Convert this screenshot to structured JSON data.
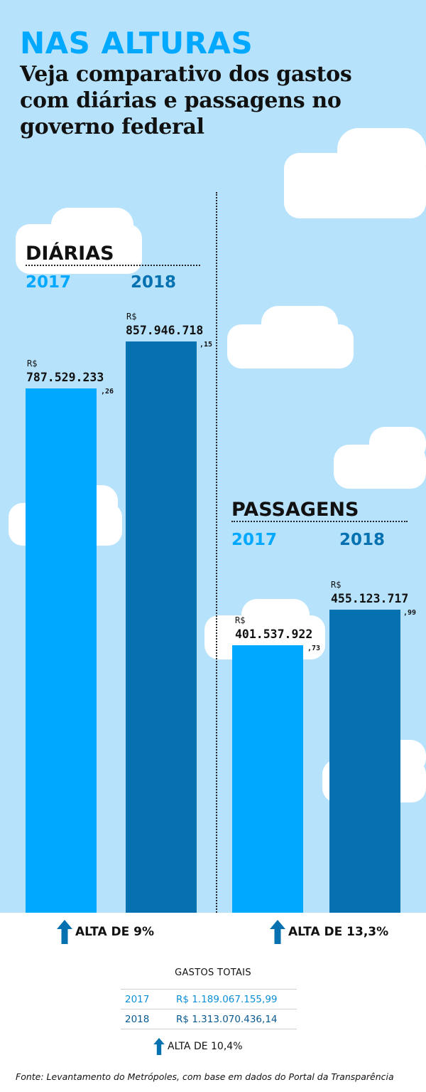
{
  "header": {
    "headline": "NAS ALTURAS",
    "subtitle": "Veja comparativo dos gastos com diárias e passagens no governo federal"
  },
  "colors": {
    "sky": "#b6e2fb",
    "bar_2017": "#00a8ff",
    "bar_2018": "#0571b0",
    "text": "#111111"
  },
  "icons": [
    "arrow-up-icon",
    "cloud"
  ],
  "chart_data": [
    {
      "type": "bar",
      "title": "DIÁRIAS",
      "categories": [
        "2017",
        "2018"
      ],
      "values": [
        787529233.26,
        857946718.15
      ],
      "currency": "R$",
      "labels": [
        {
          "main": "787.529.233",
          "cents": ",26"
        },
        {
          "main": "857.946.718",
          "cents": ",15"
        }
      ],
      "change": "ALTA DE 9%",
      "ylim": [
        0,
        900000000
      ]
    },
    {
      "type": "bar",
      "title": "PASSAGENS",
      "categories": [
        "2017",
        "2018"
      ],
      "values": [
        401537922.73,
        455123717.99
      ],
      "currency": "R$",
      "labels": [
        {
          "main": "401.537.922",
          "cents": ",73"
        },
        {
          "main": "455.123.717",
          "cents": ",99"
        }
      ],
      "change": "ALTA DE 13,3%",
      "ylim": [
        0,
        900000000
      ]
    }
  ],
  "totals": {
    "title": "GASTOS TOTAIS",
    "rows": [
      {
        "year": "2017",
        "value": "R$ 1.189.067.155,99"
      },
      {
        "year": "2018",
        "value": "R$ 1.313.070.436,14"
      }
    ],
    "change": "ALTA DE 10,4%"
  },
  "source": "Fonte: Levantamento do Metrópoles, com base em dados do Portal da Transparência"
}
